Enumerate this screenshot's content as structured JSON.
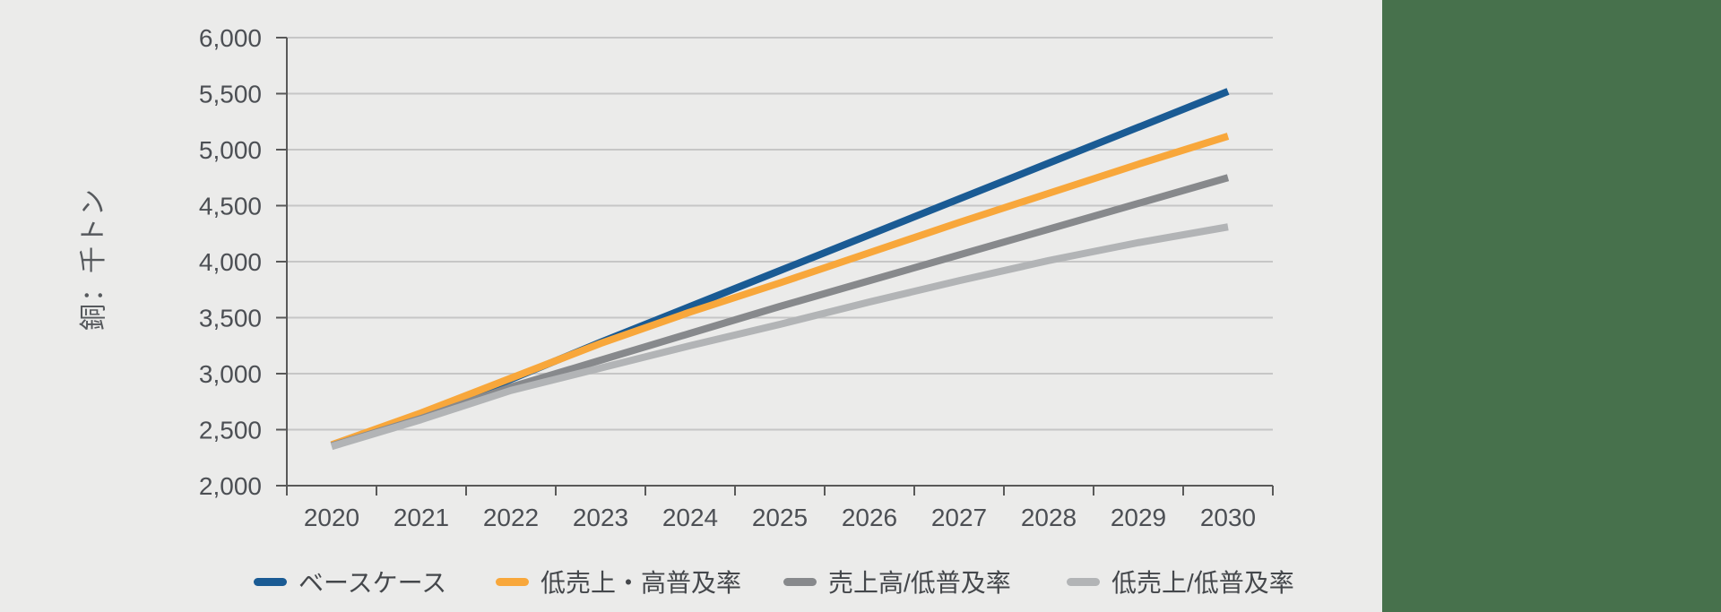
{
  "page": {
    "background_color": "#EBEBEA",
    "side_panel_color": "#47714C"
  },
  "chart_data": {
    "type": "line",
    "title": "",
    "xlabel": "",
    "ylabel": "銅：千トン",
    "categories": [
      "2020",
      "2021",
      "2022",
      "2023",
      "2024",
      "2025",
      "2026",
      "2027",
      "2028",
      "2029",
      "2030"
    ],
    "ylim": [
      2000,
      6000
    ],
    "y_ticks": [
      2000,
      2500,
      3000,
      3500,
      4000,
      4500,
      5000,
      5500,
      6000
    ],
    "y_tick_labels": [
      "2,000",
      "2,500",
      "3,000",
      "3,500",
      "4,000",
      "4,500",
      "5,000",
      "5,500",
      "6,000"
    ],
    "grid": "horizontal",
    "legend_position": "bottom",
    "axis_color": "#595959",
    "gridline_color": "#C6C6C6",
    "series": [
      {
        "name": "ベースケース",
        "color": "#1A5B94",
        "values": [
          2360,
          2620,
          2950,
          3280,
          3600,
          3920,
          4240,
          4560,
          4880,
          5200,
          5520
        ]
      },
      {
        "name": "低売上・高普及率",
        "color": "#F8A73B",
        "values": [
          2365,
          2650,
          2960,
          3270,
          3550,
          3810,
          4080,
          4350,
          4610,
          4870,
          5120
        ]
      },
      {
        "name": "売上高/低普及率",
        "color": "#87898C",
        "values": [
          2355,
          2600,
          2880,
          3120,
          3360,
          3600,
          3830,
          4060,
          4290,
          4520,
          4750
        ]
      },
      {
        "name": "低売上/低普及率",
        "color": "#B2B4B6",
        "values": [
          2350,
          2590,
          2850,
          3050,
          3250,
          3440,
          3640,
          3830,
          4010,
          4170,
          4310
        ]
      }
    ]
  }
}
